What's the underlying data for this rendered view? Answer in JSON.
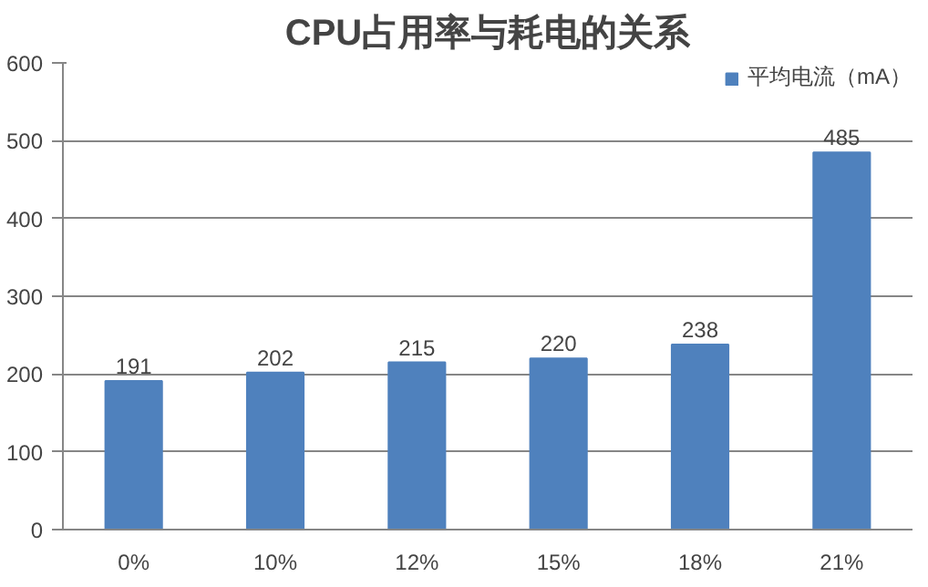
{
  "chart_data": {
    "type": "bar",
    "title": "CPU占用率与耗电的关系",
    "categories": [
      "0%",
      "10%",
      "12%",
      "15%",
      "18%",
      "21%"
    ],
    "series": [
      {
        "name": "平均电流（mA）",
        "color": "#4f81bd",
        "values": [
          191,
          202,
          215,
          220,
          238,
          485
        ]
      }
    ],
    "ylim": [
      0,
      600
    ],
    "yticks": [
      0,
      100,
      200,
      300,
      400,
      500,
      600
    ],
    "grid": "y",
    "legend": "top right",
    "data_labels": true
  }
}
